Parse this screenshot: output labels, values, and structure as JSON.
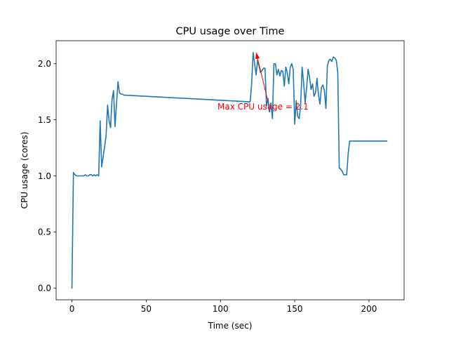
{
  "chart_data": {
    "type": "line",
    "title": "CPU usage over Time",
    "xlabel": "Time (sec)",
    "ylabel": "CPU usage (cores)",
    "xlim": [
      -10.65,
      223.65
    ],
    "ylim": [
      -0.105,
      2.205
    ],
    "xticks": [
      0,
      50,
      100,
      150,
      200
    ],
    "yticks": [
      0.0,
      0.5,
      1.0,
      1.5,
      2.0
    ],
    "xtick_labels": [
      "0",
      "50",
      "100",
      "150",
      "200"
    ],
    "ytick_labels": [
      "0.0",
      "0.5",
      "1.0",
      "1.5",
      "2.0"
    ],
    "grid": false,
    "series": [
      {
        "color": "#1f77b4",
        "x": [
          0,
          1,
          2,
          3,
          4,
          5,
          6,
          7,
          8,
          9,
          10,
          11,
          12,
          13,
          14,
          15,
          16,
          17,
          18,
          19,
          20,
          21,
          22,
          23,
          24,
          25,
          26,
          27,
          28,
          29,
          30,
          31,
          32,
          33,
          34,
          35,
          120,
          121,
          122,
          123,
          124,
          125,
          126,
          127,
          128,
          129,
          130,
          131,
          132,
          133,
          134,
          135,
          136,
          137,
          138,
          139,
          140,
          141,
          142,
          143,
          144,
          145,
          146,
          147,
          148,
          149,
          150,
          151,
          152,
          153,
          154,
          155,
          156,
          157,
          158,
          159,
          160,
          161,
          162,
          163,
          164,
          165,
          166,
          167,
          168,
          169,
          170,
          171,
          172,
          173,
          174,
          175,
          176,
          177,
          178,
          179,
          180,
          181,
          182,
          183,
          184,
          185,
          186,
          187,
          188,
          189,
          190,
          191,
          192,
          193,
          194,
          195,
          196,
          197,
          198,
          199,
          200,
          201,
          202,
          203,
          204,
          205,
          206,
          207,
          208,
          209,
          210,
          211,
          212
        ],
        "y": [
          0.0,
          1.03,
          1.01,
          1.0,
          1.0,
          1.0,
          1.0,
          1.0,
          1.0,
          1.01,
          1.0,
          1.0,
          1.01,
          1.01,
          1.0,
          1.01,
          1.0,
          1.01,
          1.0,
          1.49,
          1.08,
          1.17,
          1.26,
          1.36,
          1.63,
          1.49,
          1.43,
          1.68,
          1.76,
          1.44,
          1.64,
          1.84,
          1.74,
          1.73,
          1.73,
          1.72,
          1.66,
          1.82,
          2.1,
          2.0,
          1.9,
          2.03,
          1.98,
          1.92,
          1.94,
          1.96,
          1.96,
          1.62,
          1.69,
          1.57,
          1.65,
          1.51,
          2.0,
          2.0,
          1.9,
          1.95,
          1.89,
          1.94,
          1.93,
          1.8,
          1.97,
          1.92,
          1.82,
          1.97,
          2.0,
          1.95,
          1.46,
          1.67,
          1.53,
          1.51,
          1.63,
          1.97,
          1.83,
          1.65,
          1.78,
          1.95,
          1.88,
          1.77,
          1.82,
          1.71,
          1.74,
          1.87,
          1.72,
          1.64,
          1.79,
          1.81,
          1.76,
          1.6,
          1.98,
          2.03,
          2.04,
          2.02,
          2.06,
          2.05,
          2.03,
          1.92,
          1.07,
          1.06,
          1.04,
          1.01,
          1.01,
          1.01,
          1.2,
          1.31,
          1.31,
          1.31,
          1.31,
          1.31,
          1.31,
          1.31,
          1.31,
          1.31,
          1.31,
          1.31,
          1.31,
          1.31,
          1.31,
          1.31,
          1.31,
          1.31,
          1.31,
          1.31,
          1.31,
          1.31,
          1.31,
          1.31,
          1.31,
          1.31,
          1.31
        ]
      }
    ],
    "annotations": [
      {
        "text": "Max CPU usage = 2.1",
        "color": "#ff0000",
        "xy": [
          124,
          2.1
        ],
        "xytext": [
          98,
          1.59
        ]
      }
    ]
  }
}
